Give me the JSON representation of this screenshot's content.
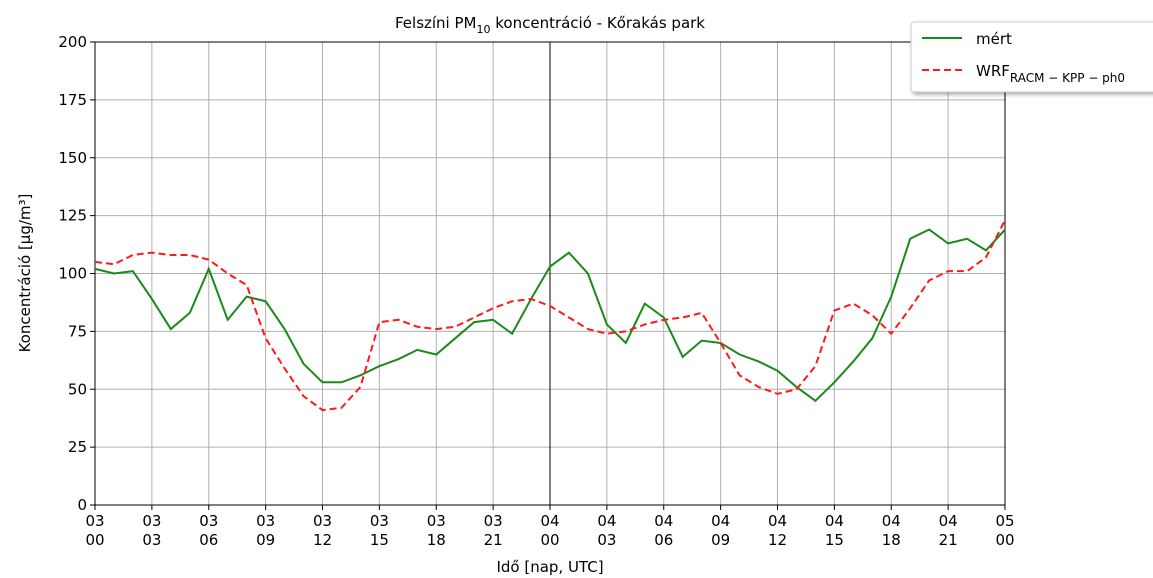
{
  "chart_data": {
    "type": "line",
    "title": {
      "pre": "Felszíni PM",
      "sub": "10",
      "post": " koncentráció - Kőrakás park"
    },
    "x_label": "Idő [nap, UTC]",
    "y_label": "Koncentráció [µg/m³]",
    "x": [
      0,
      1,
      2,
      3,
      4,
      5,
      6,
      7,
      8,
      9,
      10,
      11,
      12,
      13,
      14,
      15,
      16,
      17,
      18,
      19,
      20,
      21,
      22,
      23,
      24,
      25,
      26,
      27,
      28,
      29,
      30,
      31,
      32,
      33,
      34,
      35,
      36,
      37,
      38,
      39,
      40,
      41,
      42,
      43,
      44,
      45,
      46,
      47,
      48
    ],
    "series": [
      {
        "name": "mért",
        "color": "#1a8a1a",
        "dash": false,
        "values": [
          102,
          100,
          101,
          89,
          76,
          83,
          102,
          80,
          90,
          88,
          76,
          61,
          53,
          53,
          56,
          60,
          63,
          67,
          65,
          72,
          79,
          80,
          74,
          89,
          103,
          109,
          100,
          78,
          70,
          87,
          81,
          64,
          71,
          70,
          65,
          62,
          58,
          51,
          45,
          53,
          62,
          72,
          90,
          115,
          119,
          113,
          115,
          110,
          119
        ]
      },
      {
        "name": "WRF",
        "name_sub": "RACM − KPP − ph0",
        "color": "#ff1a1a",
        "dash": true,
        "values": [
          105,
          104,
          108,
          109,
          108,
          108,
          106,
          100,
          95,
          72,
          59,
          47,
          41,
          42,
          51,
          79,
          80,
          77,
          76,
          77,
          81,
          85,
          88,
          89,
          86,
          81,
          76,
          74,
          75,
          78,
          80,
          81,
          83,
          70,
          56,
          51,
          48,
          50,
          60,
          84,
          87,
          82,
          74,
          85,
          97,
          101,
          101,
          107,
          123
        ]
      }
    ],
    "xlim": [
      0,
      48
    ],
    "xticks": [
      {
        "value": 0,
        "label": "03\n00"
      },
      {
        "value": 3,
        "label": "03\n03"
      },
      {
        "value": 6,
        "label": "03\n06"
      },
      {
        "value": 9,
        "label": "03\n09"
      },
      {
        "value": 12,
        "label": "03\n12"
      },
      {
        "value": 15,
        "label": "03\n15"
      },
      {
        "value": 18,
        "label": "03\n18"
      },
      {
        "value": 21,
        "label": "03\n21"
      },
      {
        "value": 24,
        "label": "04\n00"
      },
      {
        "value": 27,
        "label": "04\n03"
      },
      {
        "value": 30,
        "label": "04\n06"
      },
      {
        "value": 33,
        "label": "04\n09"
      },
      {
        "value": 36,
        "label": "04\n12"
      },
      {
        "value": 39,
        "label": "04\n15"
      },
      {
        "value": 42,
        "label": "04\n18"
      },
      {
        "value": 45,
        "label": "04\n21"
      },
      {
        "value": 48,
        "label": "05\n00"
      }
    ],
    "ylim": [
      0,
      200
    ],
    "yticks": [
      0,
      25,
      50,
      75,
      100,
      125,
      150,
      175,
      200
    ],
    "vlines": [
      24
    ],
    "grid": true
  }
}
